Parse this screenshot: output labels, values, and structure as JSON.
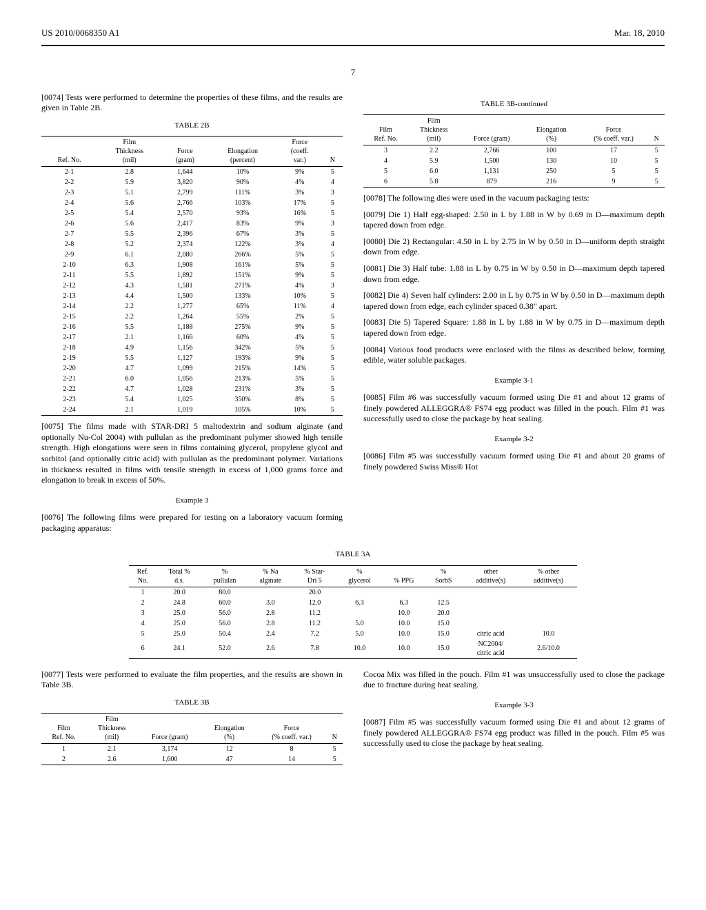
{
  "header": {
    "pub_number": "US 2010/0068350 A1",
    "date": "Mar. 18, 2010"
  },
  "page": "7",
  "left": {
    "p0074": "[0074]   Tests were performed to determine the properties of these films, and the results are given in Table 2B.",
    "table2b": {
      "caption": "TABLE 2B",
      "headers": [
        "Ref. No.",
        "Film\nThickness\n(mil)",
        "Force\n(gram)",
        "Elongation\n(percent)",
        "Force\n(coeff.\nvar.)",
        "N"
      ],
      "rows": [
        [
          "2-1",
          "2.8",
          "1,644",
          "10%",
          "9%",
          "5"
        ],
        [
          "2-2",
          "5.9",
          "3,820",
          "90%",
          "4%",
          "4"
        ],
        [
          "2-3",
          "5.1",
          "2,799",
          "111%",
          "3%",
          "3"
        ],
        [
          "2-4",
          "5.6",
          "2,766",
          "103%",
          "17%",
          "5"
        ],
        [
          "2-5",
          "5.4",
          "2,570",
          "93%",
          "16%",
          "5"
        ],
        [
          "2-6",
          "5.6",
          "2,417",
          "83%",
          "9%",
          "3"
        ],
        [
          "2-7",
          "5.5",
          "2,396",
          "67%",
          "3%",
          "5"
        ],
        [
          "2-8",
          "5.2",
          "2,374",
          "122%",
          "3%",
          "4"
        ],
        [
          "2-9",
          "6.1",
          "2,080",
          "266%",
          "5%",
          "5"
        ],
        [
          "2-10",
          "6.3",
          "1,908",
          "161%",
          "5%",
          "5"
        ],
        [
          "2-11",
          "5.5",
          "1,892",
          "151%",
          "9%",
          "5"
        ],
        [
          "2-12",
          "4.3",
          "1,581",
          "271%",
          "4%",
          "3"
        ],
        [
          "2-13",
          "4.4",
          "1,500",
          "133%",
          "10%",
          "5"
        ],
        [
          "2-14",
          "2.2",
          "1,277",
          "65%",
          "11%",
          "4"
        ],
        [
          "2-15",
          "2.2",
          "1,264",
          "55%",
          "2%",
          "5"
        ],
        [
          "2-16",
          "5.5",
          "1,188",
          "275%",
          "9%",
          "5"
        ],
        [
          "2-17",
          "2.1",
          "1,166",
          "60%",
          "4%",
          "5"
        ],
        [
          "2-18",
          "4.9",
          "1,156",
          "342%",
          "5%",
          "5"
        ],
        [
          "2-19",
          "5.5",
          "1,127",
          "193%",
          "9%",
          "5"
        ],
        [
          "2-20",
          "4.7",
          "1,099",
          "215%",
          "14%",
          "5"
        ],
        [
          "2-21",
          "6.0",
          "1,056",
          "213%",
          "5%",
          "5"
        ],
        [
          "2-22",
          "4.7",
          "1,028",
          "231%",
          "3%",
          "5"
        ],
        [
          "2-23",
          "5.4",
          "1,025",
          "350%",
          "8%",
          "5"
        ],
        [
          "2-24",
          "2.1",
          "1,019",
          "105%",
          "10%",
          "5"
        ]
      ]
    },
    "p0075": "[0075]   The films made with STAR-DRI 5 maltodextrin and sodium alginate (and optionally Nu-Col 2004) with pullulan as the predominant polymer showed high tensile strength. High elongations were seen in films containing glycerol, propylene glycol and sorbitol (and optionally citric acid) with pullulan as the predominant polymer. Variations in thickness resulted in films with tensile strength in excess of 1,000 grams force and elongation to break in excess of 50%.",
    "ex3_heading": "Example 3",
    "p0076": "[0076]   The following films were prepared for testing on a laboratory vacuum forming packaging apparatus:"
  },
  "table3a": {
    "caption": "TABLE 3A",
    "headers": [
      "Ref.\nNo.",
      "Total %\nd.s.",
      "%\npullulan",
      "% Na\nalginate",
      "% Star-\nDri 5",
      "%\nglycerol",
      "% PPG",
      "%\nSorbS",
      "other\nadditive(s)",
      "% other\nadditive(s)"
    ],
    "rows": [
      [
        "1",
        "20.0",
        "80.0",
        "",
        "20.0",
        "",
        "",
        "",
        "",
        ""
      ],
      [
        "2",
        "24.8",
        "60.0",
        "3.0",
        "12.0",
        "6.3",
        "6.3",
        "12.5",
        "",
        ""
      ],
      [
        "3",
        "25.0",
        "56.0",
        "2.8",
        "11.2",
        "",
        "10.0",
        "20.0",
        "",
        ""
      ],
      [
        "4",
        "25.0",
        "56.0",
        "2.8",
        "11.2",
        "5.0",
        "10.0",
        "15.0",
        "",
        ""
      ],
      [
        "5",
        "25.0",
        "50.4",
        "2.4",
        "7.2",
        "5.0",
        "10.0",
        "15.0",
        "citric acid",
        "10.0"
      ],
      [
        "6",
        "24.1",
        "52.0",
        "2.6",
        "7.8",
        "10.0",
        "10.0",
        "15.0",
        "NC2004/\ncitric acid",
        "2.6/10.0"
      ]
    ]
  },
  "left2": {
    "p0077": "[0077]   Tests were performed to evaluate the film properties, and the results are shown in Table 3B.",
    "table3b": {
      "caption": "TABLE 3B",
      "headers": [
        "Film\nRef. No.",
        "Film\nThickness\n(mil)",
        "Force (gram)",
        "Elongation\n(%)",
        "Force\n(% coeff. var.)",
        "N"
      ],
      "rows": [
        [
          "1",
          "2.1",
          "3,174",
          "12",
          "8",
          "5"
        ],
        [
          "2",
          "2.6",
          "1,600",
          "47",
          "14",
          "5"
        ]
      ]
    }
  },
  "right": {
    "table3bcont": {
      "caption": "TABLE 3B-continued",
      "headers": [
        "Film\nRef. No.",
        "Film\nThickness\n(mil)",
        "Force (gram)",
        "Elongation\n(%)",
        "Force\n(% coeff. var.)",
        "N"
      ],
      "rows": [
        [
          "3",
          "2.2",
          "2,766",
          "100",
          "17",
          "5"
        ],
        [
          "4",
          "5.9",
          "1,500",
          "130",
          "10",
          "5"
        ],
        [
          "5",
          "6.0",
          "1,131",
          "250",
          "5",
          "5"
        ],
        [
          "6",
          "5.8",
          "879",
          "216",
          "9",
          "5"
        ]
      ]
    },
    "p0078": "[0078]   The following dies were used in the vacuum packaging tests:",
    "p0079": "[0079]   Die 1) Half egg-shaped: 2.50 in L by 1.88 in W by 0.69 in D—maximum depth tapered down from edge.",
    "p0080": "[0080]   Die 2) Rectangular: 4.50 in L by 2.75 in W by 0.50 in D—uniform depth straight down from edge.",
    "p0081": "[0081]   Die 3) Half tube: 1.88 in L by 0.75 in W by 0.50 in D—maximum depth tapered down from edge.",
    "p0082": "[0082]   Die 4) Seven half cylinders: 2.00 in L by 0.75 in W by 0.50 in D—maximum depth tapered down from edge, each cylinder spaced 0.38\" apart.",
    "p0083": "[0083]   Die 5) Tapered Square: 1.88 in L by 1.88 in W by 0.75 in D—maximum depth tapered down from edge.",
    "p0084": "[0084]   Various food products were enclosed with the films as described below, forming edible, water soluble packages.",
    "ex31_heading": "Example 3-1",
    "p0085": "[0085]   Film #6 was successfully vacuum formed using Die #1 and about 12 grams of finely powdered ALLEGGRA® FS74 egg product was filled in the pouch. Film #1 was successfully used to close the package by heat sealing.",
    "ex32_heading": "Example 3-2",
    "p0086": "[0086]   Film #5 was successfully vacuum formed using Die #1 and about 20 grams of finely powdered Swiss Miss® Hot"
  },
  "right2": {
    "p0086cont": "Cocoa Mix was filled in the pouch. Film #1 was unsuccessfully used to close the package due to fracture during heat sealing.",
    "ex33_heading": "Example 3-3",
    "p0087": "[0087]   Film #5 was successfully vacuum formed using Die #1 and about 12 grams of finely powdered ALLEGGRA® FS74 egg product was filled in the pouch. Film #5 was successfully used to close the package by heat sealing."
  }
}
